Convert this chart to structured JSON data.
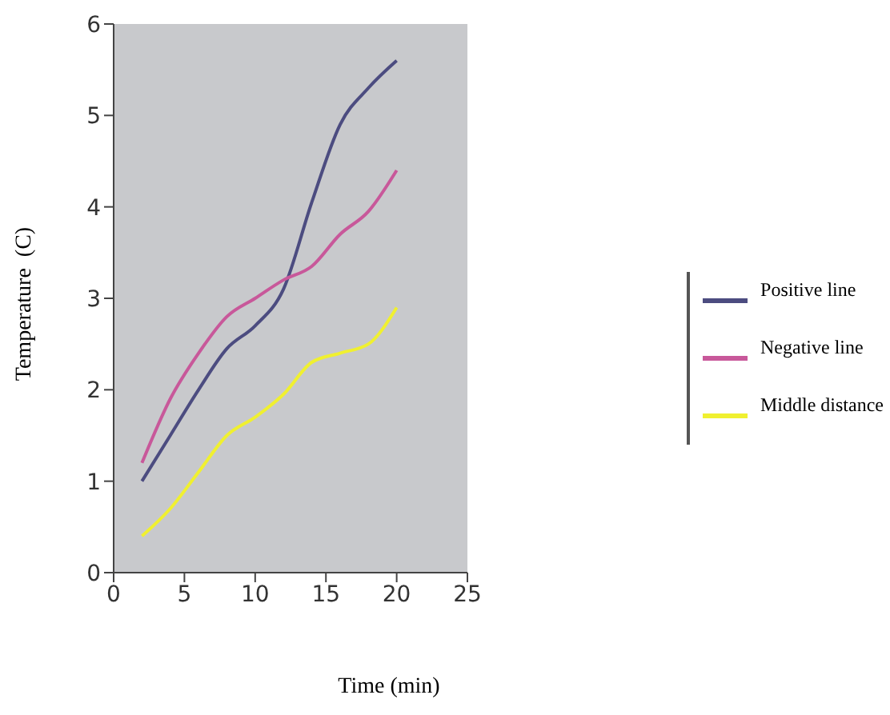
{
  "chart_data": {
    "type": "line",
    "xlabel": "Time (min)",
    "ylabel": "Temperature  (C)",
    "x": [
      2,
      4,
      6,
      8,
      10,
      12,
      14,
      16,
      18,
      20
    ],
    "series": [
      {
        "name": "Positive line",
        "color": "#4c4c80",
        "values": [
          1.0,
          1.5,
          2.0,
          2.45,
          2.7,
          3.1,
          4.05,
          4.9,
          5.3,
          5.6
        ]
      },
      {
        "name": "Negative line",
        "color": "#c8589a",
        "values": [
          1.2,
          1.9,
          2.4,
          2.8,
          3.0,
          3.2,
          3.35,
          3.7,
          3.95,
          4.4
        ]
      },
      {
        "name": "Middle distance",
        "color": "#f0f030",
        "values": [
          0.4,
          0.7,
          1.1,
          1.5,
          1.7,
          1.95,
          2.3,
          2.4,
          2.5,
          2.9
        ]
      }
    ],
    "xlim": [
      0,
      25
    ],
    "xticks": [
      0,
      5,
      10,
      15,
      20,
      25
    ],
    "ylim": [
      0,
      6
    ],
    "yticks": [
      0,
      1,
      2,
      3,
      4,
      5,
      6
    ],
    "grid": false,
    "legend": "right",
    "marker": "none",
    "line_style": "solid"
  }
}
